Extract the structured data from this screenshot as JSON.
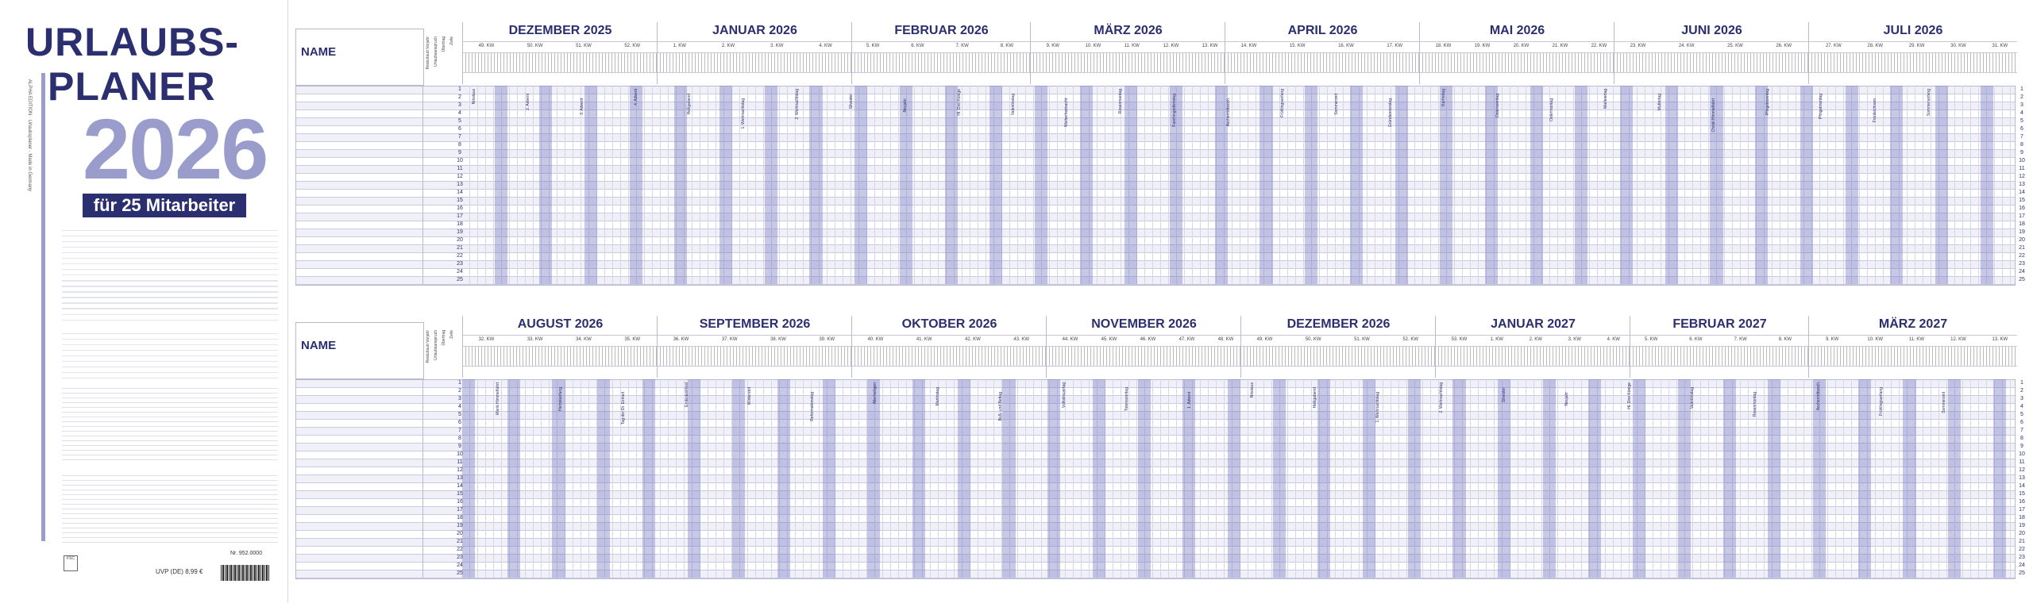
{
  "header": {
    "title_line1": "URLAUBS-",
    "title_line2": "PLANER",
    "year": "2026",
    "subtitle": "für 25 Mitarbeiter"
  },
  "sidebar": {
    "publisher_vertical": "ALPHA EDITION · Urlaubsplaner · Made in Germany",
    "price": "UVP (DE) 8,99 €",
    "article_no": "Nr. 952.0000",
    "fsc_label": "FSC"
  },
  "columns": {
    "name_header": "NAME",
    "subheaders": [
      "Resturlaub Vorjahr",
      "Urlaubsanspruch",
      "Übertrag",
      "Zeile"
    ]
  },
  "block_top": {
    "months": [
      "DEZEMBER 2025",
      "JANUAR 2026",
      "FEBRUAR 2026",
      "MÄRZ 2026",
      "APRIL 2026",
      "MAI 2026",
      "JUNI 2026",
      "JULI 2026"
    ],
    "kw_labels": [
      "49. KW",
      "50. KW",
      "51. KW",
      "52. KW",
      "1. KW",
      "2. KW",
      "3. KW",
      "4. KW",
      "5. KW",
      "6. KW",
      "7. KW",
      "8. KW",
      "9. KW",
      "10. KW",
      "11. KW",
      "12. KW",
      "13. KW",
      "14. KW",
      "15. KW",
      "16. KW",
      "17. KW",
      "18. KW",
      "19. KW",
      "20. KW",
      "21. KW",
      "22. KW",
      "23. KW",
      "24. KW",
      "25. KW",
      "26. KW",
      "27. KW",
      "28. KW",
      "29. KW",
      "30. KW",
      "31. KW"
    ]
  },
  "block_bottom": {
    "months": [
      "AUGUST 2026",
      "SEPTEMBER 2026",
      "OKTOBER 2026",
      "NOVEMBER 2026",
      "DEZEMBER 2026",
      "JANUAR 2027",
      "FEBRUAR 2027",
      "MÄRZ 2027"
    ],
    "kw_labels": [
      "32. KW",
      "33. KW",
      "34. KW",
      "35. KW",
      "36. KW",
      "37. KW",
      "38. KW",
      "39. KW",
      "40. KW",
      "41. KW",
      "42. KW",
      "43. KW",
      "44. KW",
      "45. KW",
      "46. KW",
      "47. KW",
      "48. KW",
      "49. KW",
      "50. KW",
      "51. KW",
      "52. KW",
      "53. KW",
      "1. KW",
      "2. KW",
      "3. KW",
      "4. KW",
      "5. KW",
      "6. KW",
      "7. KW",
      "8. KW",
      "9. KW",
      "10. KW",
      "11. KW",
      "12. KW",
      "13. KW"
    ]
  },
  "row_numbers": [
    "1",
    "2",
    "3",
    "4",
    "5",
    "6",
    "7",
    "8",
    "9",
    "10",
    "11",
    "12",
    "13",
    "14",
    "15",
    "16",
    "17",
    "18",
    "19",
    "20",
    "21",
    "22",
    "23",
    "24",
    "25"
  ],
  "holiday_notes_top": [
    "Nikolaus",
    "2. Advent",
    "3. Advent",
    "4. Advent",
    "Heiligabend",
    "1. Weihnachtstag",
    "2. Weihnachtstag",
    "Silvester",
    "Neujahr",
    "Hl. Drei Könige",
    "Valentinstag",
    "Weiberfastnacht",
    "Rosenmontag",
    "Faschingsdienstag",
    "Aschermittwoch",
    "Frühlingsanfang",
    "Sommerzeit",
    "Gründonnerstag",
    "Karfreitag",
    "Ostersonntag",
    "Ostermontag",
    "Maifeiertag",
    "Muttertag",
    "Christi Himmelfahrt",
    "Pfingstsonntag",
    "Pfingstmontag",
    "Fronleichnam",
    "Sommeranfang"
  ],
  "holiday_notes_bottom": [
    "Mariä Himmelfahrt",
    "Herbstanfang",
    "Tag der Dt. Einheit",
    "Erntedankfest",
    "Winterzeit",
    "Reformationstag",
    "Allerheiligen",
    "Martinstag",
    "Buß- und Bettag",
    "Volkstrauertag",
    "Totensonntag",
    "1. Advent",
    "Nikolaus",
    "Heiligabend",
    "1. Weihnachtstag",
    "2. Weihnachtstag",
    "Silvester",
    "Neujahr",
    "Hl. Drei Könige",
    "Valentinstag",
    "Rosenmontag",
    "Aschermittwoch",
    "Frühlingsanfang",
    "Sommerzeit"
  ],
  "colors": {
    "navy": "#2b2e6f",
    "lavender": "#9a9ccc",
    "weekend_shade": "#8587c4",
    "row_stripe": "#f0f0f8"
  }
}
